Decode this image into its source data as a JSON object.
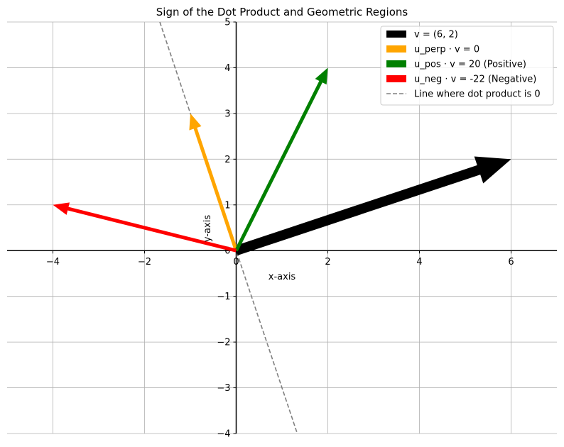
{
  "chart_data": {
    "type": "vector-plot",
    "title": "Sign of the Dot Product and Geometric Regions",
    "xlabel": "x-axis",
    "ylabel": "y-axis",
    "xlim": [
      -5,
      7
    ],
    "ylim": [
      -4,
      5
    ],
    "xticks": [
      -4,
      -2,
      0,
      2,
      4,
      6
    ],
    "yticks": [
      -4,
      -3,
      -2,
      -1,
      0,
      1,
      2,
      3,
      4,
      5
    ],
    "xtick_labels": [
      "−4",
      "−2",
      "0",
      "2",
      "4",
      "6"
    ],
    "ytick_labels": [
      "−4",
      "−3",
      "−2",
      "−1",
      "0",
      "1",
      "2",
      "3",
      "4",
      "5"
    ],
    "grid": true,
    "legend_position": "top-right",
    "vectors": [
      {
        "label": "v = (6, 2)",
        "x": 6,
        "y": 2,
        "color": "#000000",
        "weight": "heavy"
      },
      {
        "label": "u_perp · v = 0",
        "x": -1,
        "y": 3,
        "color": "#ffa500",
        "weight": "normal"
      },
      {
        "label": "u_pos · v = 20 (Positive)",
        "x": 2,
        "y": 4,
        "color": "#008000",
        "weight": "normal"
      },
      {
        "label": "u_neg · v = -22 (Negative)",
        "x": -4,
        "y": 1,
        "color": "#ff0000",
        "weight": "normal"
      }
    ],
    "lines": [
      {
        "label": "Line where dot product is 0",
        "slope": -3,
        "intercept": 0,
        "color": "#808080",
        "style": "dashed"
      }
    ]
  }
}
